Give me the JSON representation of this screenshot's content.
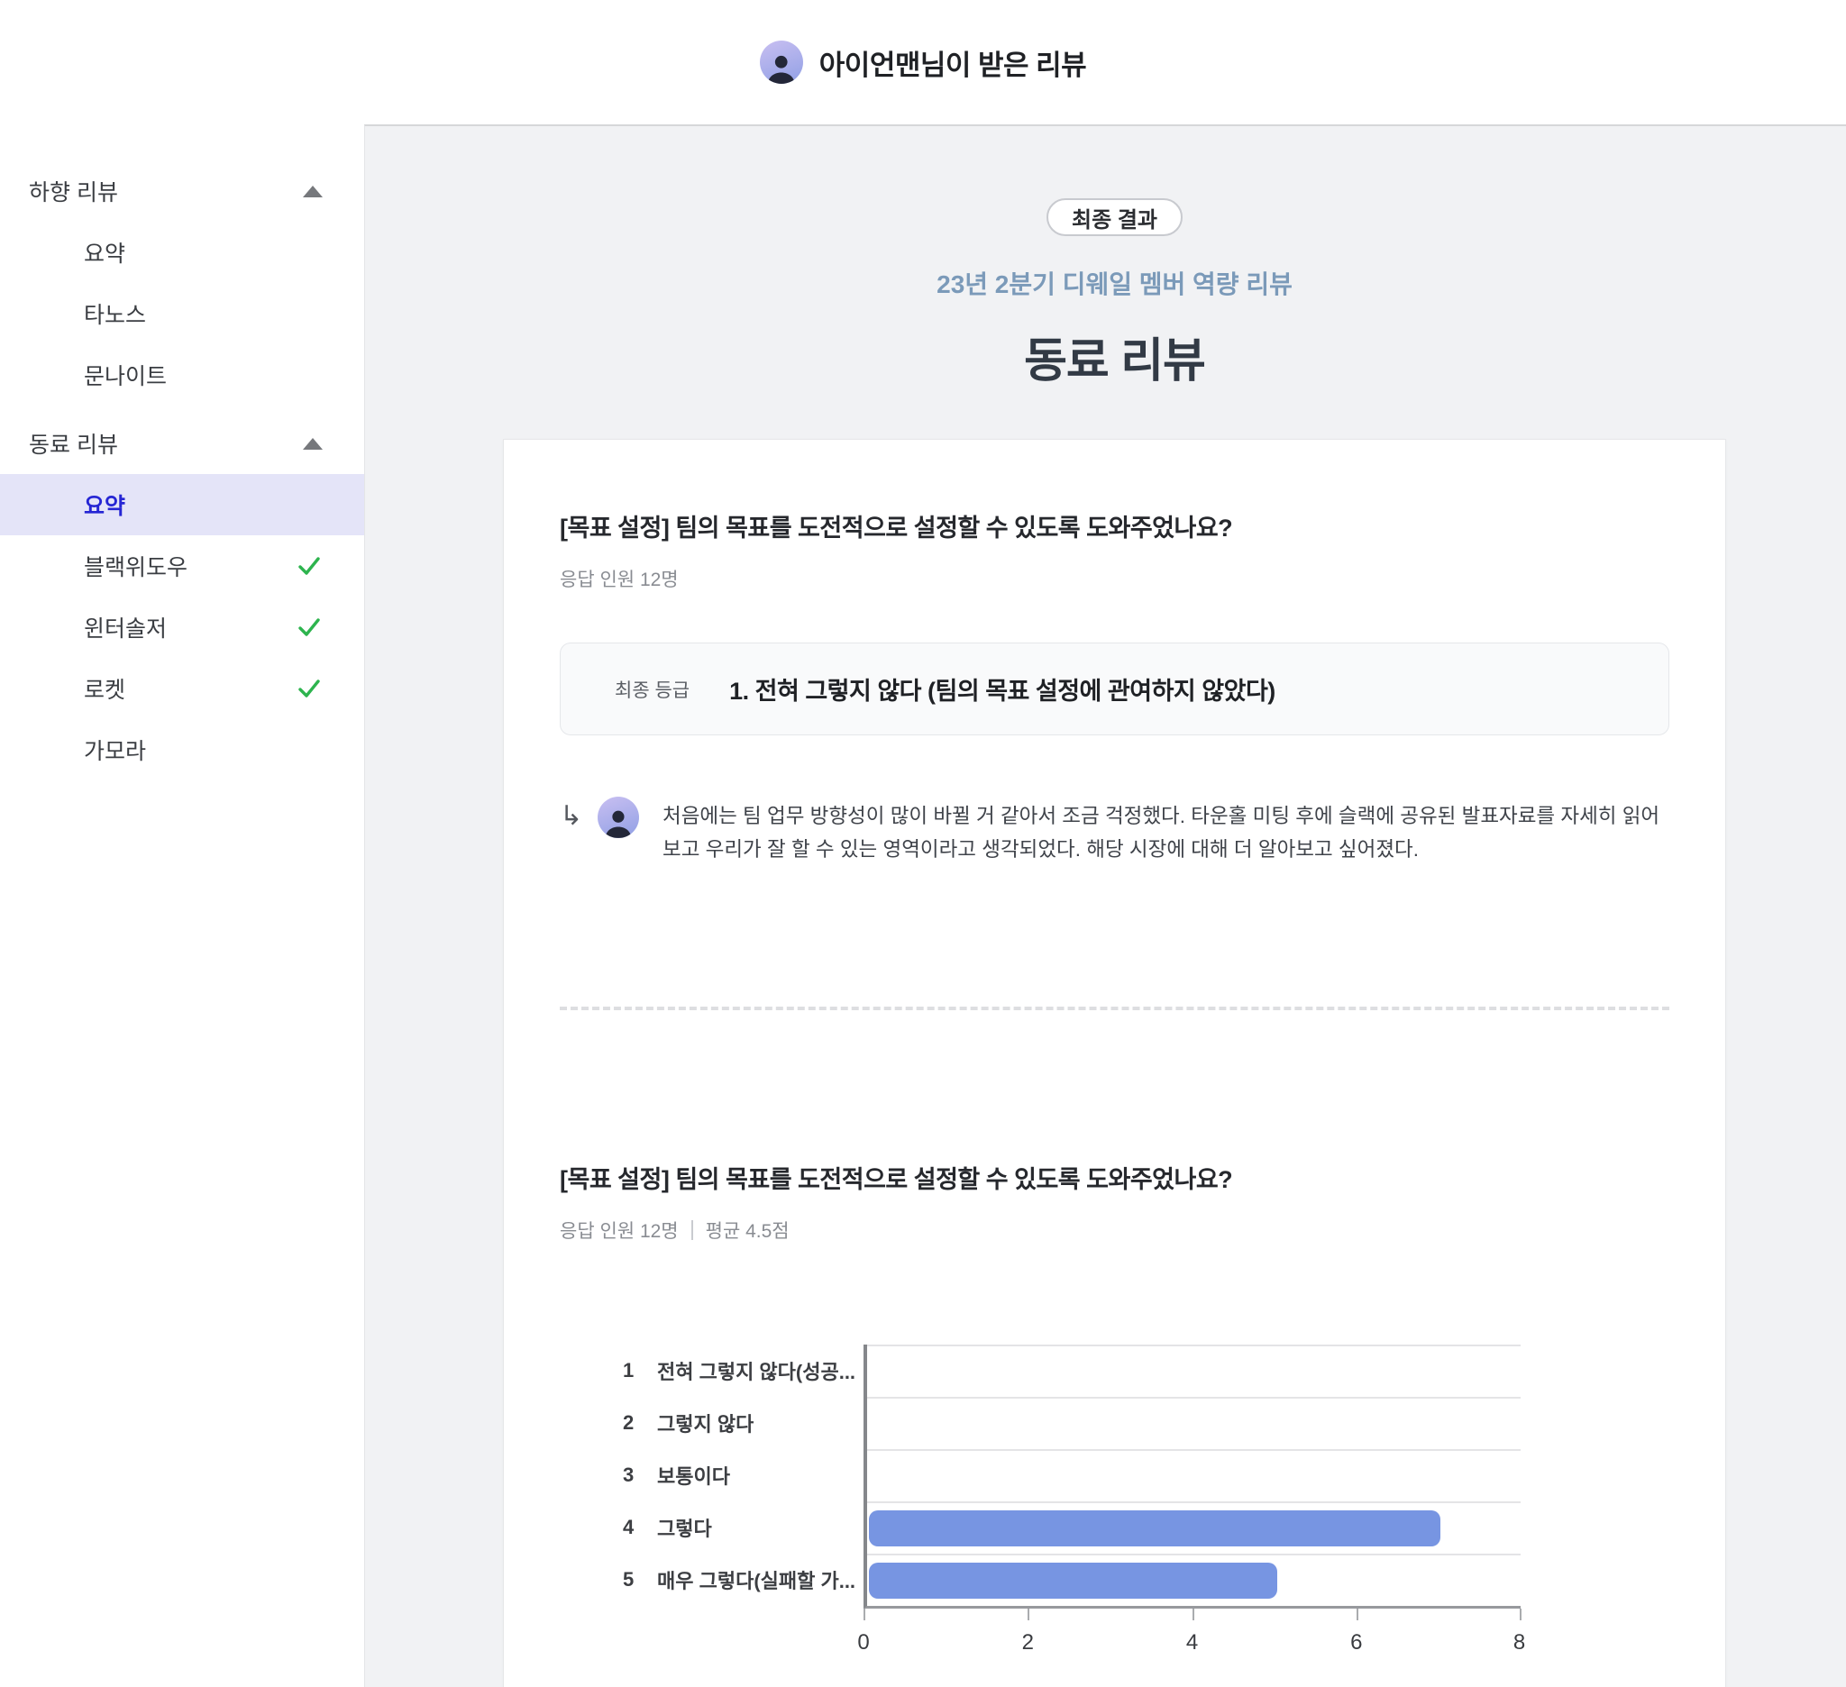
{
  "header": {
    "title": "아이언맨님이 받은 리뷰",
    "avatar_icon": "person-avatar"
  },
  "sidebar": {
    "sections": [
      {
        "label": "하향 리뷰",
        "collapse_icon": "triangle-up-icon",
        "items": [
          {
            "label": "요약"
          },
          {
            "label": "타노스"
          },
          {
            "label": "문나이트"
          }
        ]
      },
      {
        "label": "동료 리뷰",
        "collapse_icon": "triangle-up-icon",
        "items": [
          {
            "label": "요약",
            "active": true
          },
          {
            "label": "블랙위도우",
            "checked": true
          },
          {
            "label": "윈터솔저",
            "checked": true
          },
          {
            "label": "로켓",
            "checked": true
          },
          {
            "label": "가모라"
          }
        ]
      }
    ]
  },
  "main": {
    "badge": "최종 결과",
    "subtitle": "23년 2분기 디웨일 멤버 역량 리뷰",
    "title": "동료 리뷰",
    "question1": {
      "title": "[목표 설정] 팀의 목표를 도전적으로 설정할 수 있도록 도와주었나요?",
      "meta": "응답 인원 12명",
      "final_grade_label": "최종 등급",
      "final_grade_value": "1. 전혀 그렇지 않다 (팀의 목표 설정에 관여하지 않았다)",
      "comment": "처음에는 팀 업무 방향성이 많이 바뀔 거 같아서 조금 걱정했다. 타운홀 미팅 후에 슬랙에 공유된 발표자료를 자세히 읽어보고 우리가 잘 할 수 있는 영역이라고 생각되었다. 해당 시장에 대해 더 알아보고 싶어졌다."
    },
    "question2": {
      "title": "[목표 설정] 팀의 목표를 도전적으로 설정할 수 있도록 도와주었나요?",
      "meta_respondents": "응답 인원 12명",
      "meta_average": "평균 4.5점"
    }
  },
  "chart_data": {
    "type": "bar",
    "orientation": "horizontal",
    "category_numbers": [
      "1",
      "2",
      "3",
      "4",
      "5"
    ],
    "categories": [
      "전혀 그렇지 않다(성공...",
      "그렇지 않다",
      "보통이다",
      "그렇다",
      "매우 그렇다(실패할 가..."
    ],
    "values": [
      0,
      0,
      0,
      7,
      5
    ],
    "xlim": [
      0,
      8
    ],
    "xticks": [
      "0",
      "2",
      "4",
      "6",
      "8"
    ],
    "bar_color": "#7795e2",
    "grid": true,
    "legend": false
  },
  "colors": {
    "accent_blue": "#2525d4",
    "active_item_bg": "#e4e4f8",
    "check_green": "#2db44e",
    "panel_bg": "#f1f2f4",
    "subtitle_blue": "#7b9ab9",
    "bar_blue": "#7795e2"
  }
}
